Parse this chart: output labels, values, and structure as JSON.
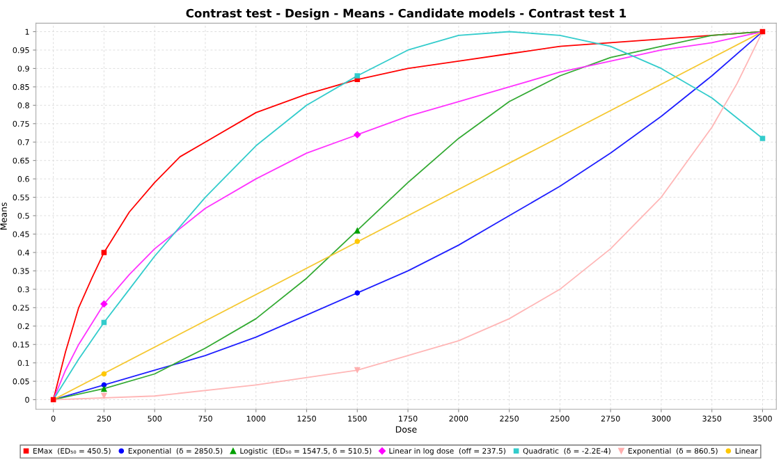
{
  "chart_data": {
    "type": "line",
    "title": "Contrast test - Design - Means - Candidate models - Contrast test 1",
    "xlabel": "Dose",
    "ylabel": "Means",
    "xlim": [
      -86,
      3568
    ],
    "ylim": [
      -0.026,
      1.023
    ],
    "xticks": [
      0,
      250,
      500,
      750,
      1000,
      1250,
      1500,
      1750,
      2000,
      2250,
      2500,
      2750,
      3000,
      3250,
      3500
    ],
    "yticks": [
      0,
      0.05,
      0.1,
      0.15,
      0.2,
      0.25,
      0.3,
      0.35,
      0.4,
      0.45,
      0.5,
      0.55,
      0.6,
      0.65,
      0.7,
      0.75,
      0.8,
      0.85,
      0.9,
      0.95,
      1
    ],
    "grid": true,
    "legend": "bottom",
    "series": [
      {
        "color": "#ff0000",
        "x": [
          0,
          60,
          125,
          190,
          250,
          375,
          500,
          625,
          750,
          1000,
          1250,
          1500,
          1750,
          2000,
          2250,
          2500,
          2750,
          3000,
          3250,
          3500
        ],
        "values": [
          0,
          0.13,
          0.25,
          0.33,
          0.4,
          0.51,
          0.59,
          0.66,
          0.7,
          0.78,
          0.83,
          0.87,
          0.9,
          0.92,
          0.94,
          0.96,
          0.97,
          0.98,
          0.99,
          1
        ]
      },
      {
        "type": "scatter",
        "name": "EMax  (ED₅₀ = 450.5)",
        "color": "#ff0000",
        "marker": "square",
        "x": [
          0,
          250,
          1500,
          3500
        ],
        "values": [
          0,
          0.4,
          0.87,
          1
        ]
      },
      {
        "color": "#2020ff",
        "x": [
          0,
          250,
          500,
          750,
          1000,
          1250,
          1500,
          1750,
          2000,
          2250,
          2500,
          2750,
          3000,
          3250,
          3500
        ],
        "values": [
          0,
          0.04,
          0.08,
          0.12,
          0.17,
          0.23,
          0.29,
          0.35,
          0.42,
          0.5,
          0.58,
          0.67,
          0.77,
          0.88,
          1
        ]
      },
      {
        "type": "scatter",
        "name": "Exponential  (δ = 2850.5)",
        "color": "#0000ff",
        "marker": "circle",
        "x": [
          250,
          1500
        ],
        "values": [
          0.04,
          0.29
        ]
      },
      {
        "color": "#33aa33",
        "x": [
          0,
          250,
          500,
          750,
          1000,
          1250,
          1500,
          1750,
          2000,
          2250,
          2500,
          2750,
          3000,
          3250,
          3500
        ],
        "values": [
          0,
          0.03,
          0.07,
          0.14,
          0.22,
          0.33,
          0.46,
          0.59,
          0.71,
          0.81,
          0.88,
          0.93,
          0.96,
          0.99,
          1
        ]
      },
      {
        "type": "scatter",
        "name": "Logistic  (ED₅₀ = 1547.5, δ = 510.5)",
        "color": "#00a000",
        "marker": "triangle",
        "x": [
          250,
          1500
        ],
        "values": [
          0.03,
          0.46
        ]
      },
      {
        "color": "#ff33ff",
        "x": [
          0,
          60,
          125,
          250,
          375,
          500,
          750,
          1000,
          1250,
          1500,
          1750,
          2000,
          2250,
          2500,
          2750,
          3000,
          3250,
          3500
        ],
        "values": [
          0,
          0.08,
          0.15,
          0.26,
          0.34,
          0.41,
          0.52,
          0.6,
          0.67,
          0.72,
          0.77,
          0.81,
          0.85,
          0.89,
          0.92,
          0.95,
          0.97,
          1
        ]
      },
      {
        "type": "scatter",
        "name": "Linear in log dose  (off = 237.5)",
        "color": "#ff00ff",
        "marker": "diamond",
        "x": [
          250,
          1500
        ],
        "values": [
          0.26,
          0.72
        ]
      },
      {
        "color": "#33cccc",
        "x": [
          0,
          125,
          250,
          375,
          500,
          750,
          1000,
          1250,
          1500,
          1750,
          2000,
          2250,
          2500,
          2750,
          3000,
          3250,
          3500
        ],
        "values": [
          0,
          0.11,
          0.21,
          0.3,
          0.39,
          0.55,
          0.69,
          0.8,
          0.88,
          0.95,
          0.99,
          1,
          0.99,
          0.96,
          0.9,
          0.82,
          0.71
        ]
      },
      {
        "type": "scatter",
        "name": "Quadratic  (δ = -2.2E-4)",
        "color": "#33cccc",
        "marker": "square",
        "x": [
          250,
          1500,
          3500
        ],
        "values": [
          0.21,
          0.88,
          0.71
        ]
      },
      {
        "color": "#ffb6b6",
        "x": [
          0,
          500,
          1000,
          1500,
          1750,
          2000,
          2250,
          2500,
          2750,
          3000,
          3250,
          3375,
          3500
        ],
        "values": [
          0,
          0.01,
          0.04,
          0.08,
          0.12,
          0.16,
          0.22,
          0.3,
          0.41,
          0.55,
          0.74,
          0.86,
          1
        ]
      },
      {
        "type": "scatter",
        "name": "Exponential  (δ = 860.5)",
        "color": "#ffafaf",
        "marker": "triangle_down",
        "x": [
          250,
          1500
        ],
        "values": [
          0.01,
          0.08
        ]
      },
      {
        "color": "#f5c832",
        "x": [
          0,
          3500
        ],
        "values": [
          0,
          1
        ]
      },
      {
        "type": "scatter",
        "name": "Linear",
        "color": "#ffc800",
        "marker": "circle",
        "x": [
          250,
          1500
        ],
        "values": [
          0.07,
          0.43
        ]
      }
    ]
  }
}
